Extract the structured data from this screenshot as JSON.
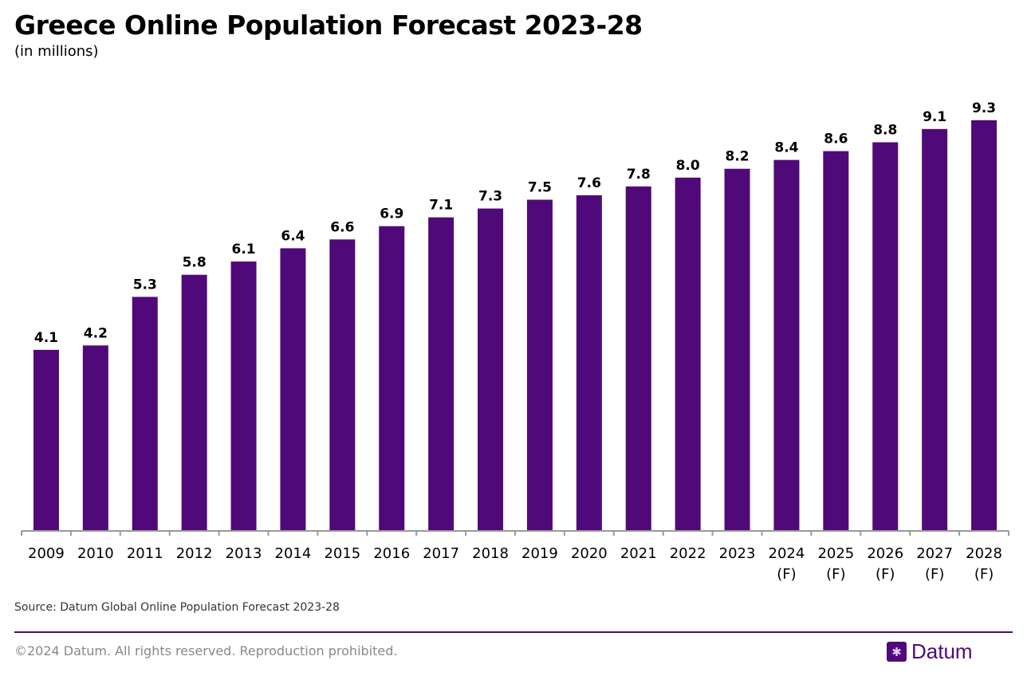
{
  "chart_data": {
    "type": "bar",
    "title": "Greece Online Population Forecast 2023-28",
    "subtitle": "(in millions)",
    "categories": [
      "2009",
      "2010",
      "2011",
      "2012",
      "2013",
      "2014",
      "2015",
      "2016",
      "2017",
      "2018",
      "2019",
      "2020",
      "2021",
      "2022",
      "2023",
      "2024\n(F)",
      "2025\n(F)",
      "2026\n(F)",
      "2027\n(F)",
      "2028\n(F)"
    ],
    "values": [
      4.1,
      4.2,
      5.3,
      5.8,
      6.1,
      6.4,
      6.6,
      6.9,
      7.1,
      7.3,
      7.5,
      7.6,
      7.8,
      8.0,
      8.2,
      8.4,
      8.6,
      8.8,
      9.1,
      9.3
    ],
    "labels": [
      "4.1",
      "4.2",
      "5.3",
      "5.8",
      "6.1",
      "6.4",
      "6.6",
      "6.9",
      "7.1",
      "7.3",
      "7.5",
      "7.6",
      "7.8",
      "8.0",
      "8.2",
      "8.4",
      "8.6",
      "8.8",
      "9.1",
      "9.3"
    ],
    "ylim": [
      0,
      10
    ],
    "grid": false,
    "bar_color": "#4f0978"
  },
  "source": "Source: Datum Global Online Population Forecast 2023-28",
  "footer": {
    "copyright": "©2024 Datum. All rights reserved. Reproduction prohibited.",
    "logo": "Datum",
    "logo_icon": "globe-grid-icon"
  }
}
